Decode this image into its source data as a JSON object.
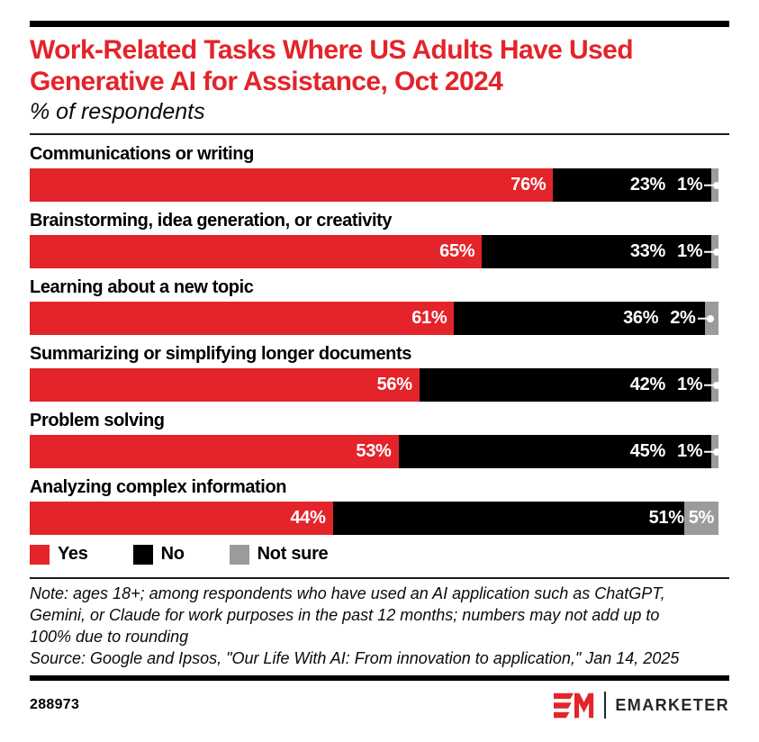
{
  "chart_data": {
    "type": "bar",
    "orientation": "horizontal",
    "stacked": true,
    "title": "Work-Related Tasks Where US Adults Have Used Generative AI for Assistance, Oct 2024",
    "subtitle": "% of respondents",
    "unit": "%",
    "xlim": [
      0,
      100
    ],
    "legend_position": "bottom",
    "grid": false,
    "categories": [
      "Communications or writing",
      "Brainstorming, idea generation, or creativity",
      "Learning about a new topic",
      "Summarizing or simplifying longer documents",
      "Problem solving",
      "Analyzing complex information"
    ],
    "series": [
      {
        "name": "Yes",
        "color": "#e3242a",
        "values": [
          76,
          65,
          61,
          56,
          53,
          44
        ]
      },
      {
        "name": "No",
        "color": "#000000",
        "values": [
          23,
          33,
          36,
          42,
          45,
          51
        ]
      },
      {
        "name": "Not sure",
        "color": "#9b9b9b",
        "values": [
          1,
          1,
          2,
          1,
          1,
          5
        ]
      }
    ]
  },
  "footer": {
    "note_lines": [
      "Note: ages 18+; among respondents who have used an AI application such as ChatGPT,",
      "Gemini, or Claude for work purposes in the past 12 months; numbers may not add up to",
      "100% due to rounding"
    ],
    "source": "Source: Google and Ipsos, \"Our Life With AI: From innovation to application,\" Jan 14, 2025",
    "chart_id": "288973",
    "brand": "EMARKETER"
  }
}
